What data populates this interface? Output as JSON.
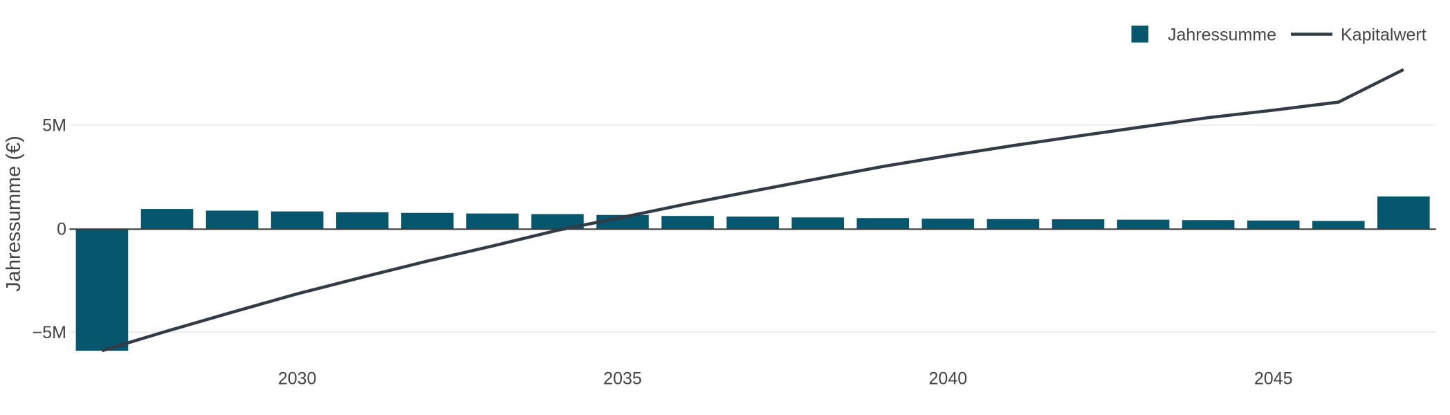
{
  "chart_data": {
    "type": "bar",
    "x": [
      2027,
      2028,
      2029,
      2030,
      2031,
      2032,
      2033,
      2034,
      2035,
      2036,
      2037,
      2038,
      2039,
      2040,
      2041,
      2042,
      2043,
      2044,
      2045,
      2046,
      2047
    ],
    "series": [
      {
        "name": "Jahressumme",
        "type": "bar",
        "color": "#06566e",
        "values": [
          -5900000,
          950000,
          870000,
          830000,
          790000,
          760000,
          730000,
          700000,
          660000,
          610000,
          580000,
          540000,
          510000,
          480000,
          460000,
          450000,
          430000,
          410000,
          390000,
          370000,
          1550000
        ]
      },
      {
        "name": "Kapitalwert",
        "type": "line",
        "color": "#333c46",
        "values": [
          -5900000,
          -4950000,
          -4040000,
          -3150000,
          -2350000,
          -1570000,
          -840000,
          -80000,
          550000,
          1200000,
          1810000,
          2410000,
          3000000,
          3520000,
          4010000,
          4470000,
          4920000,
          5360000,
          5720000,
          6110000,
          7680000
        ]
      }
    ],
    "title": "",
    "xlabel": "",
    "ylabel": "Jahressumme (€)",
    "ylim": [
      -6700000,
      8150000
    ],
    "yticks": [
      {
        "value": 5000000,
        "label": "5M"
      },
      {
        "value": 0,
        "label": "0"
      },
      {
        "value": -5000000,
        "label": "−5M"
      }
    ],
    "xticks": [
      {
        "value": 2030,
        "label": "2030"
      },
      {
        "value": 2035,
        "label": "2035"
      },
      {
        "value": 2040,
        "label": "2040"
      },
      {
        "value": 2045,
        "label": "2045"
      }
    ],
    "grid": true,
    "legend_position": "top-right"
  },
  "legend": {
    "items": [
      {
        "label": "Jahressumme",
        "swatch": "square",
        "color": "#06566e"
      },
      {
        "label": "Kapitalwert",
        "swatch": "line",
        "color": "#333c46"
      }
    ]
  },
  "colors": {
    "background": "#ffffff",
    "bar": "#06566e",
    "line": "#333c46",
    "zero_axis": "#3b3b3b",
    "gridline": "#ececec",
    "text": "#444444"
  }
}
